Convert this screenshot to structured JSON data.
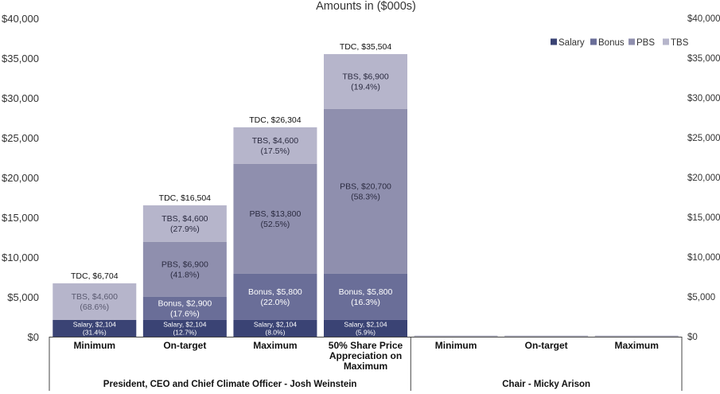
{
  "chart_data": {
    "type": "bar",
    "stacked": true,
    "title": "Amounts in ($000s)",
    "ylim": [
      0,
      40000
    ],
    "y_ticks": [
      "$0",
      "$5,000",
      "$10,000",
      "$15,000",
      "$20,000",
      "$25,000",
      "$30,000",
      "$35,000",
      "$40,000"
    ],
    "y_ticks_right": [
      "$0",
      "$5,000",
      "$10,000",
      "$15,000",
      "$20,000",
      "$25,000",
      "$30,000",
      "$35,000",
      "$40,000"
    ],
    "categories": [
      "Minimum",
      "On-target",
      "Maximum",
      "50% Share Price Appreciation on Maximum",
      "Minimum",
      "On-target",
      "Maximum"
    ],
    "category_lines": [
      [
        "Minimum"
      ],
      [
        "On-target"
      ],
      [
        "Maximum"
      ],
      [
        "50% Share Price",
        "Appreciation on",
        "Maximum"
      ],
      [
        "Minimum"
      ],
      [
        "On-target"
      ],
      [
        "Maximum"
      ]
    ],
    "groups": [
      {
        "name": "President, CEO and Chief Climate Officer - Josh Weinstein",
        "from": 0,
        "to": 3
      },
      {
        "name": "Chair - Micky Arison",
        "from": 4,
        "to": 6
      }
    ],
    "series": [
      {
        "name": "Salary",
        "color": "#3a4374",
        "values": [
          2104,
          2104,
          2104,
          2104,
          0,
          0,
          0
        ],
        "labels": [
          [
            "Salary, $2,104",
            "(31.4%)"
          ],
          [
            "Salary, $2,104",
            "(12.7%)"
          ],
          [
            "Salary, $2,104",
            "(8.0%)"
          ],
          [
            "Salary, $2,104",
            "(5.9%)"
          ],
          null,
          null,
          null
        ]
      },
      {
        "name": "Bonus",
        "color": "#6a6e98",
        "values": [
          0,
          2900,
          5800,
          5800,
          0,
          0,
          0
        ],
        "labels": [
          null,
          [
            "Bonus, $2,900",
            "(17.6%)"
          ],
          [
            "Bonus, $5,800",
            "(22.0%)"
          ],
          [
            "Bonus, $5,800",
            "(16.3%)"
          ],
          null,
          null,
          null
        ]
      },
      {
        "name": "PBS",
        "color": "#8f8fae",
        "values": [
          0,
          6900,
          13800,
          20700,
          0,
          0,
          0
        ],
        "labels": [
          null,
          [
            "PBS, $6,900",
            "(41.8%)"
          ],
          [
            "PBS, $13,800",
            "(52.5%)"
          ],
          [
            "PBS, $20,700",
            "(58.3%)"
          ],
          null,
          null,
          null
        ]
      },
      {
        "name": "TBS",
        "color": "#b6b5cb",
        "values": [
          4600,
          4600,
          4600,
          6900,
          0,
          0,
          0
        ],
        "labels": [
          [
            "TBS, $4,600",
            "(68.6%)"
          ],
          [
            "TBS, $4,600",
            "(27.9%)"
          ],
          [
            "TBS, $4,600",
            "(17.5%)"
          ],
          [
            "TBS, $6,900",
            "(19.4%)"
          ],
          null,
          null,
          null
        ]
      }
    ],
    "label_colors": {
      "Salary": "#ffffff",
      "Bonus": "#ffffff",
      "PBS": "#2b2b40",
      "TBS": "#2b2b40"
    },
    "tbs_on_grey_label_color": "#5a5a70",
    "totals": [
      "TDC, $6,704",
      "TDC, $16,504",
      "TDC, $26,304",
      "TDC, $35,504",
      null,
      null,
      null
    ],
    "legend": [
      "Salary",
      "Bonus",
      "PBS",
      "TBS"
    ],
    "legend_position": "top-right",
    "grid": false
  }
}
